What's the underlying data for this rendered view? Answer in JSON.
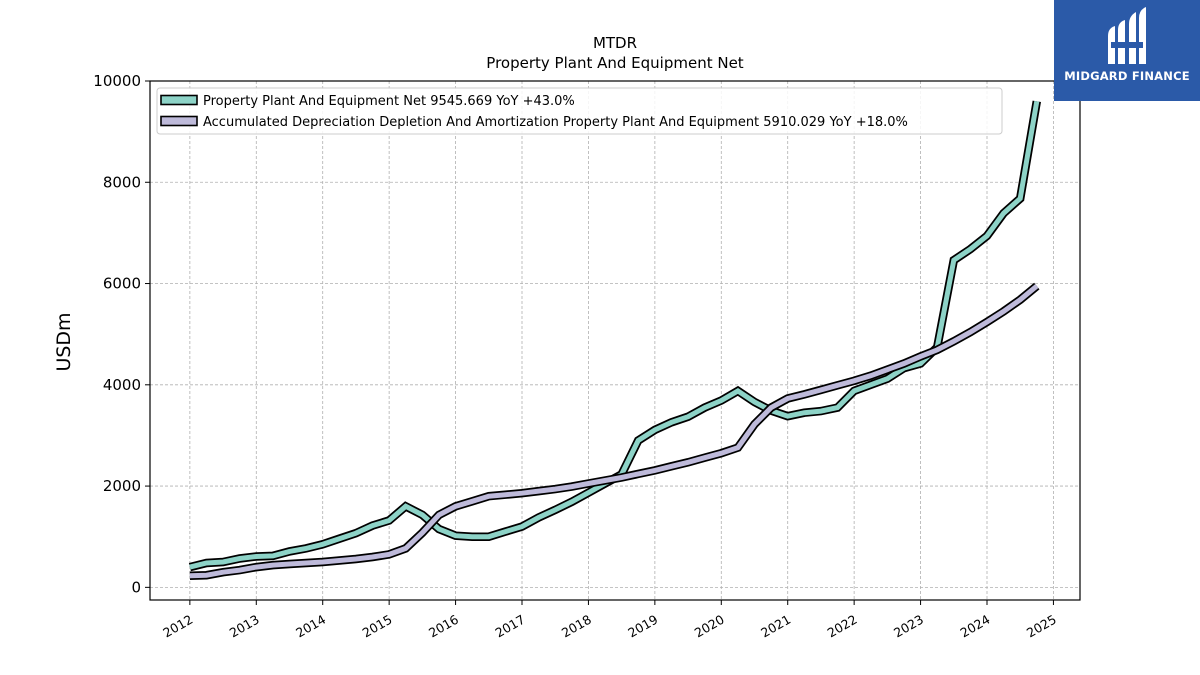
{
  "logo": {
    "text": "MIDGARD FINANCE"
  },
  "chart_data": {
    "type": "line",
    "title": "MTDR",
    "subtitle": "Property Plant And Equipment Net",
    "xlabel": "",
    "ylabel": "USDm",
    "xlim": [
      2011.4,
      2025.4
    ],
    "ylim": [
      -250,
      10000
    ],
    "yticks": [
      0,
      2000,
      4000,
      6000,
      8000,
      10000
    ],
    "xticks": [
      "2012",
      "2013",
      "2014",
      "2015",
      "2016",
      "2017",
      "2018",
      "2019",
      "2020",
      "2021",
      "2022",
      "2023",
      "2024",
      "2025"
    ],
    "grid": true,
    "legend_position": "top-left",
    "series": [
      {
        "name": "Property Plant And Equipment Net  9545.669 YoY +43.0%",
        "color": "#8dd3c7",
        "x": [
          2012.0,
          2012.25,
          2012.5,
          2012.75,
          2013.0,
          2013.25,
          2013.5,
          2013.75,
          2014.0,
          2014.25,
          2014.5,
          2014.75,
          2015.0,
          2015.25,
          2015.5,
          2015.75,
          2016.0,
          2016.25,
          2016.5,
          2016.75,
          2017.0,
          2017.25,
          2017.5,
          2017.75,
          2018.0,
          2018.25,
          2018.5,
          2018.75,
          2019.0,
          2019.25,
          2019.5,
          2019.75,
          2020.0,
          2020.25,
          2020.5,
          2020.75,
          2021.0,
          2021.25,
          2021.5,
          2021.75,
          2022.0,
          2022.25,
          2022.5,
          2022.75,
          2023.0,
          2023.25,
          2023.5,
          2023.75,
          2024.0,
          2024.25,
          2024.5,
          2024.75
        ],
        "values": [
          400,
          480,
          500,
          570,
          610,
          620,
          710,
          770,
          850,
          960,
          1070,
          1220,
          1320,
          1600,
          1430,
          1150,
          1020,
          1000,
          1000,
          1100,
          1200,
          1380,
          1530,
          1690,
          1870,
          2050,
          2230,
          2900,
          3110,
          3260,
          3370,
          3550,
          3690,
          3880,
          3660,
          3490,
          3380,
          3450,
          3480,
          3550,
          3880,
          4000,
          4120,
          4330,
          4420,
          4740,
          6460,
          6680,
          6940,
          7390,
          7680,
          9600
        ]
      },
      {
        "name": "Accumulated Depreciation Depletion And Amortization Property Plant And Equipment  5910.029 YoY +18.0%",
        "color": "#bebada",
        "x": [
          2012.0,
          2012.25,
          2012.5,
          2012.75,
          2013.0,
          2013.25,
          2013.5,
          2013.75,
          2014.0,
          2014.25,
          2014.5,
          2014.75,
          2015.0,
          2015.25,
          2015.5,
          2015.75,
          2016.0,
          2016.25,
          2016.5,
          2016.75,
          2017.0,
          2017.25,
          2017.5,
          2017.75,
          2018.0,
          2018.25,
          2018.5,
          2018.75,
          2019.0,
          2019.25,
          2019.5,
          2019.75,
          2020.0,
          2020.25,
          2020.5,
          2020.75,
          2021.0,
          2021.25,
          2021.5,
          2021.75,
          2022.0,
          2022.25,
          2022.5,
          2022.75,
          2023.0,
          2023.25,
          2023.5,
          2023.75,
          2024.0,
          2024.25,
          2024.5,
          2024.75
        ],
        "values": [
          230,
          240,
          300,
          340,
          400,
          440,
          460,
          480,
          500,
          530,
          560,
          600,
          650,
          770,
          1080,
          1430,
          1600,
          1700,
          1800,
          1830,
          1860,
          1900,
          1940,
          1990,
          2050,
          2110,
          2170,
          2240,
          2310,
          2390,
          2470,
          2560,
          2650,
          2760,
          3220,
          3550,
          3730,
          3810,
          3900,
          3990,
          4080,
          4180,
          4300,
          4420,
          4560,
          4690,
          4860,
          5040,
          5240,
          5450,
          5680,
          5950
        ]
      }
    ]
  }
}
